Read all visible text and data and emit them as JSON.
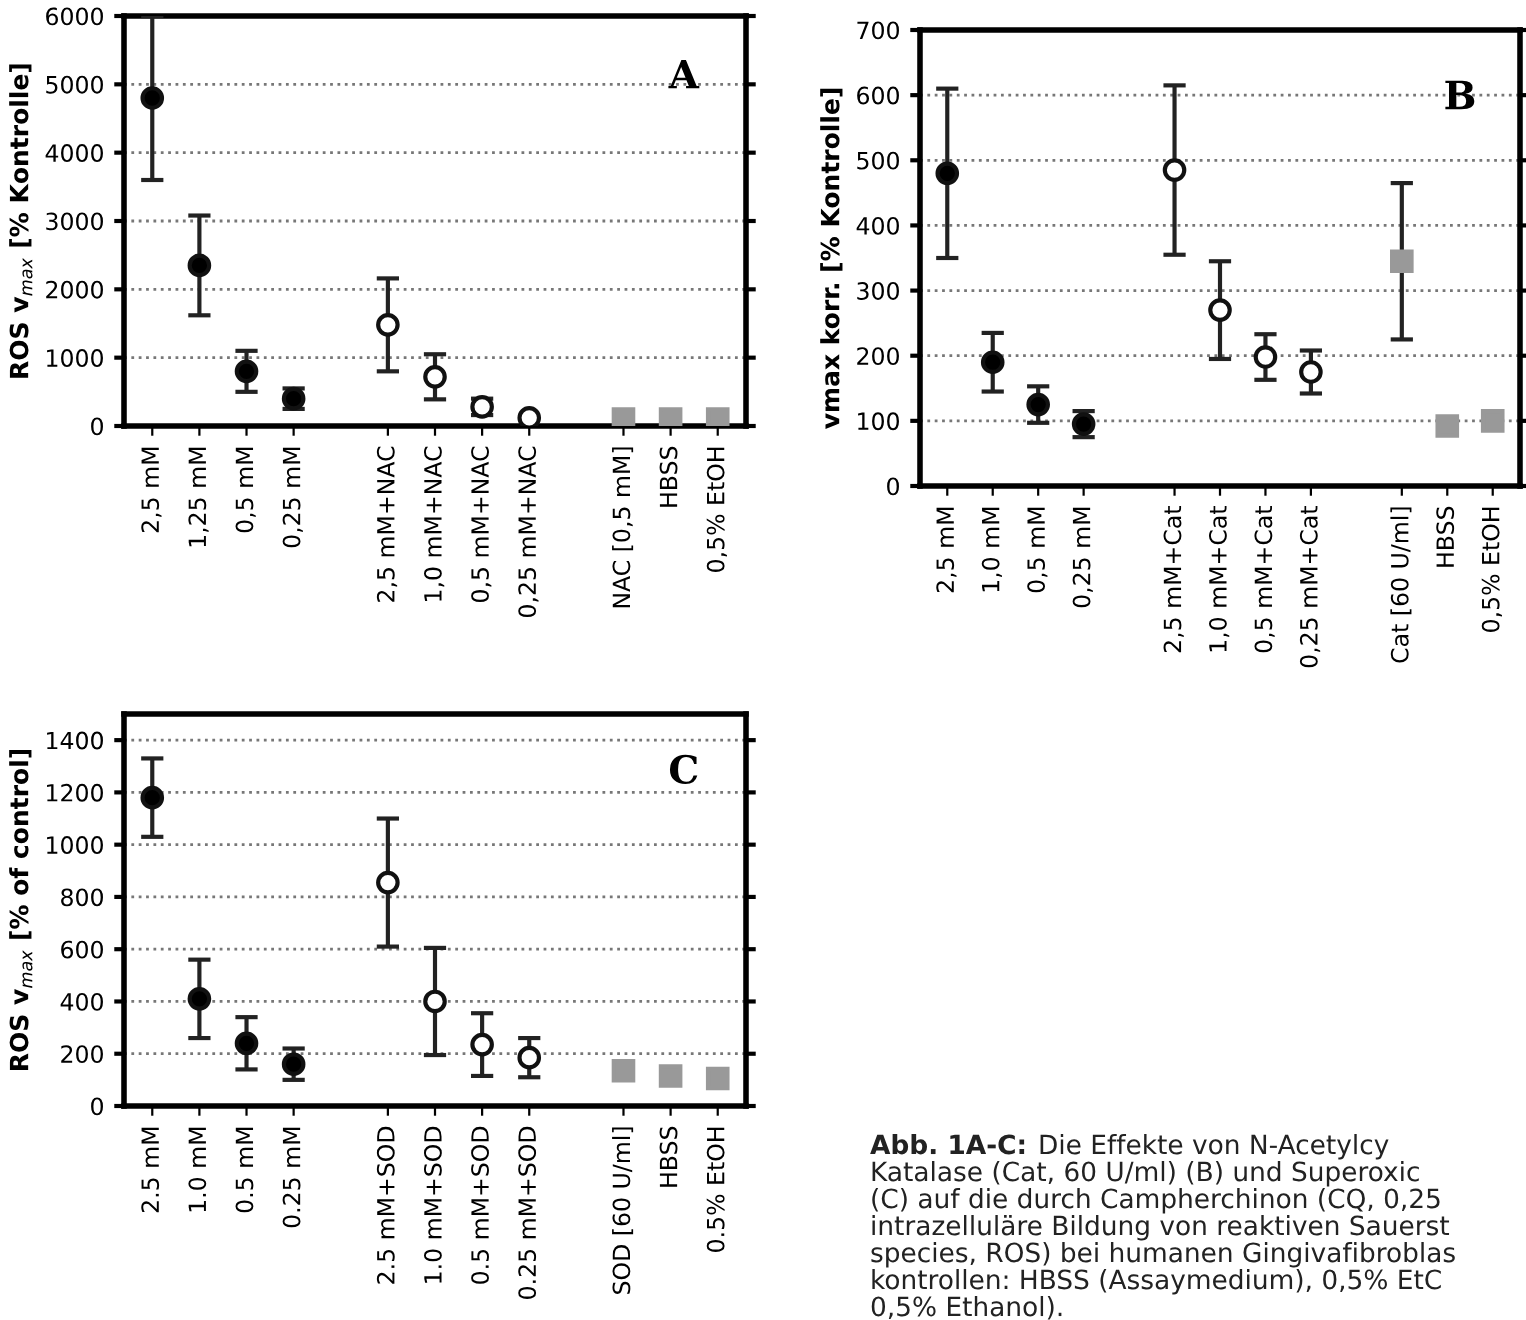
{
  "chart_data": [
    {
      "type": "scatter",
      "ylabel": "ROS v$_{max}$ [% Kontrolle]",
      "annotations": [
        "A"
      ],
      "categories": [
        "2,5 mM",
        "1,25 mM",
        "0,5 mM",
        "0,25 mM",
        null,
        "2,5 mM+NAC",
        "1,0 mM+NAC",
        "0,5 mM+NAC",
        "0,25 mM+NAC",
        null,
        "NAC [0,5 mM]",
        "HBSS",
        "0,5% EtOH"
      ],
      "ylim": [
        0,
        6000
      ],
      "yticks": [
        0,
        1000,
        2000,
        3000,
        4000,
        5000,
        6000
      ],
      "grid": "y",
      "series": [
        {
          "color": "#000000",
          "marker": "circle",
          "values": [
            4800,
            2350,
            800,
            400,
            null,
            null,
            null,
            null,
            null,
            null,
            null,
            null,
            null
          ],
          "errors": [
            1200,
            730,
            300,
            150,
            null,
            null,
            null,
            null,
            null,
            null,
            null,
            null,
            null
          ]
        },
        {
          "color": "#ffffff",
          "marker": "circle",
          "values": [
            null,
            null,
            null,
            null,
            null,
            1480,
            720,
            280,
            120,
            null,
            null,
            null,
            null
          ],
          "errors": [
            null,
            null,
            null,
            null,
            null,
            680,
            330,
            120,
            null,
            null,
            null,
            null,
            null
          ]
        },
        {
          "color": "#999999",
          "marker": "square",
          "values": [
            null,
            null,
            null,
            null,
            null,
            null,
            null,
            null,
            null,
            null,
            100,
            100,
            100
          ],
          "errors": [
            null,
            null,
            null,
            null,
            null,
            null,
            null,
            null,
            null,
            null,
            null,
            null,
            null
          ]
        }
      ]
    },
    {
      "type": "scatter",
      "ylabel": "vmax korr. [% Kontrolle]",
      "annotations": [
        "B"
      ],
      "categories": [
        "2,5 mM",
        "1,0 mM",
        "0,5 mM",
        "0,25 mM",
        null,
        "2,5 mM+Cat",
        "1,0 mM+Cat",
        "0,5 mM+Cat",
        "0,25 mM+Cat",
        null,
        "Cat [60 U/ml]",
        "HBSS",
        "0,5% EtOH"
      ],
      "ylim": [
        0,
        700
      ],
      "yticks": [
        0,
        100,
        200,
        300,
        400,
        500,
        600,
        700
      ],
      "grid": "y",
      "series": [
        {
          "color": "#000000",
          "marker": "circle",
          "values": [
            480,
            190,
            125,
            95,
            null,
            null,
            null,
            null,
            null,
            null,
            null,
            null,
            null
          ],
          "errors": [
            130,
            45,
            28,
            20,
            null,
            null,
            null,
            null,
            null,
            null,
            null,
            null,
            null
          ]
        },
        {
          "color": "#ffffff",
          "marker": "circle",
          "values": [
            null,
            null,
            null,
            null,
            null,
            485,
            270,
            198,
            175,
            null,
            null,
            null,
            null
          ],
          "errors": [
            null,
            null,
            null,
            null,
            null,
            130,
            75,
            35,
            33,
            null,
            null,
            null,
            null
          ]
        },
        {
          "color": "#999999",
          "marker": "square",
          "values": [
            null,
            null,
            null,
            null,
            null,
            null,
            null,
            null,
            null,
            null,
            345,
            92,
            100
          ],
          "errors": [
            null,
            null,
            null,
            null,
            null,
            null,
            null,
            null,
            null,
            null,
            120,
            null,
            null
          ]
        }
      ]
    },
    {
      "type": "scatter",
      "ylabel": "ROS v$_{max}$ [% of control]",
      "annotations": [
        "C"
      ],
      "categories": [
        "2.5 mM",
        "1.0 mM",
        "0.5 mM",
        "0.25 mM",
        null,
        "2.5 mM+SOD",
        "1.0 mM+SOD",
        "0.5 mM+SOD",
        "0.25 mM+SOD",
        null,
        "SOD [60 U/ml]",
        "HBSS",
        "0.5% EtOH"
      ],
      "ylim": [
        0,
        1500
      ],
      "yticks": [
        0,
        200,
        400,
        600,
        800,
        1000,
        1200,
        1400
      ],
      "grid": "y",
      "series": [
        {
          "color": "#000000",
          "marker": "circle",
          "values": [
            1180,
            410,
            240,
            160,
            null,
            null,
            null,
            null,
            null,
            null,
            null,
            null,
            null
          ],
          "errors": [
            150,
            150,
            100,
            60,
            null,
            null,
            null,
            null,
            null,
            null,
            null,
            null,
            null
          ]
        },
        {
          "color": "#ffffff",
          "marker": "circle",
          "values": [
            null,
            null,
            null,
            null,
            null,
            855,
            400,
            235,
            185,
            null,
            null,
            null,
            null
          ],
          "errors": [
            null,
            null,
            null,
            null,
            null,
            245,
            205,
            120,
            75,
            null,
            null,
            null,
            null
          ]
        },
        {
          "color": "#999999",
          "marker": "square",
          "values": [
            null,
            null,
            null,
            null,
            null,
            null,
            null,
            null,
            null,
            null,
            135,
            115,
            105
          ],
          "errors": [
            null,
            null,
            null,
            null,
            null,
            null,
            null,
            null,
            null,
            null,
            null,
            null,
            null
          ]
        }
      ]
    },
    {
      "type": "other",
      "annotations": [
        "Abb. 1A-C:",
        "Die Effekte von N-Acetylcy",
        "Katalase (Cat, 60 U/ml) (B) und Superoxic",
        "(C) auf die durch Campherchinon (CQ, 0,25",
        "intrazelluläre Bildung von reaktiven Sauerst",
        "species, ROS) bei humanen Gingivafibroblas",
        "kontrollen: HBSS (Assaymedium), 0,5% EtC",
        "0,5% Ethanol)."
      ]
    }
  ]
}
